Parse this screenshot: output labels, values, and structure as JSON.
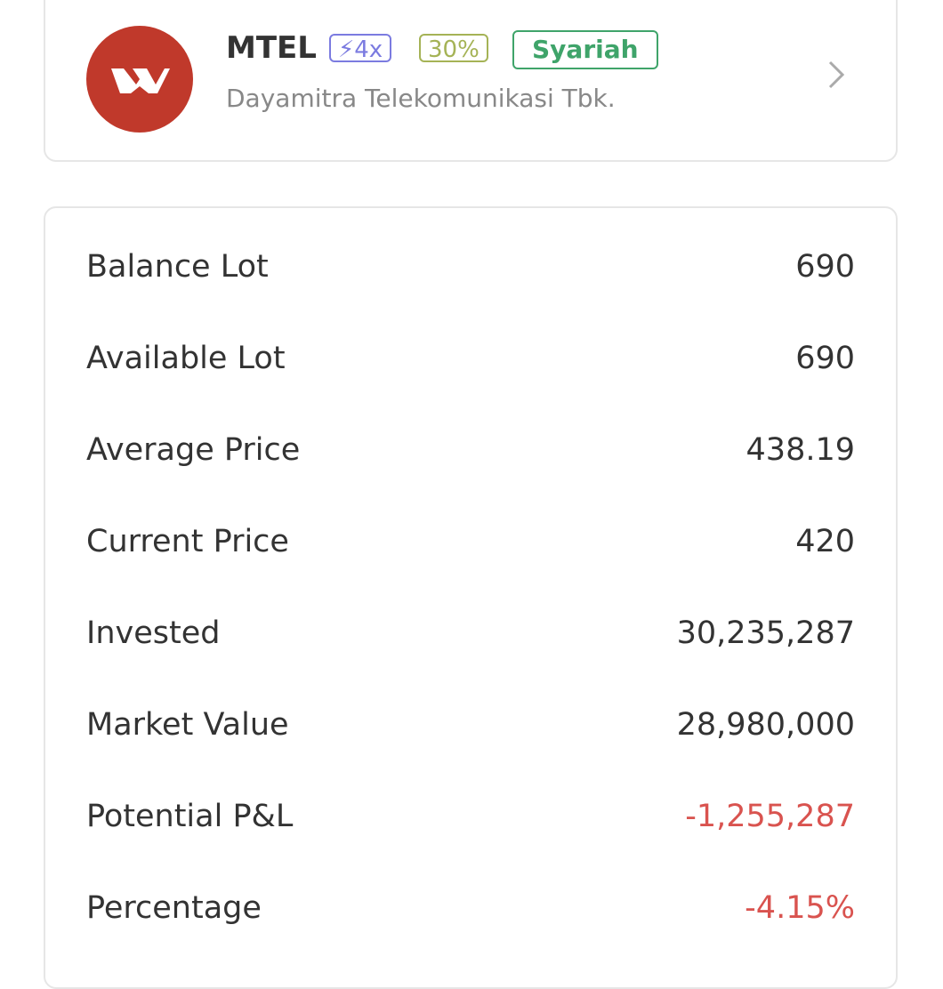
{
  "stock": {
    "ticker": "MTEL",
    "badges": [
      "4x",
      "30%",
      "Syariah"
    ],
    "name": "Dayamitra Telekomunikasi Tbk."
  },
  "details": {
    "rows": [
      {
        "label": "Balance Lot",
        "value": "690"
      },
      {
        "label": "Available Lot",
        "value": "690"
      },
      {
        "label": "Average Price",
        "value": "438.19"
      },
      {
        "label": "Current Price",
        "value": "420"
      },
      {
        "label": "Invested",
        "value": "30,235,287"
      },
      {
        "label": "Market Value",
        "value": "28,980,000"
      },
      {
        "label": "Potential P&L",
        "value": "-1,255,287"
      },
      {
        "label": "Percentage",
        "value": "-4.15%"
      }
    ]
  }
}
